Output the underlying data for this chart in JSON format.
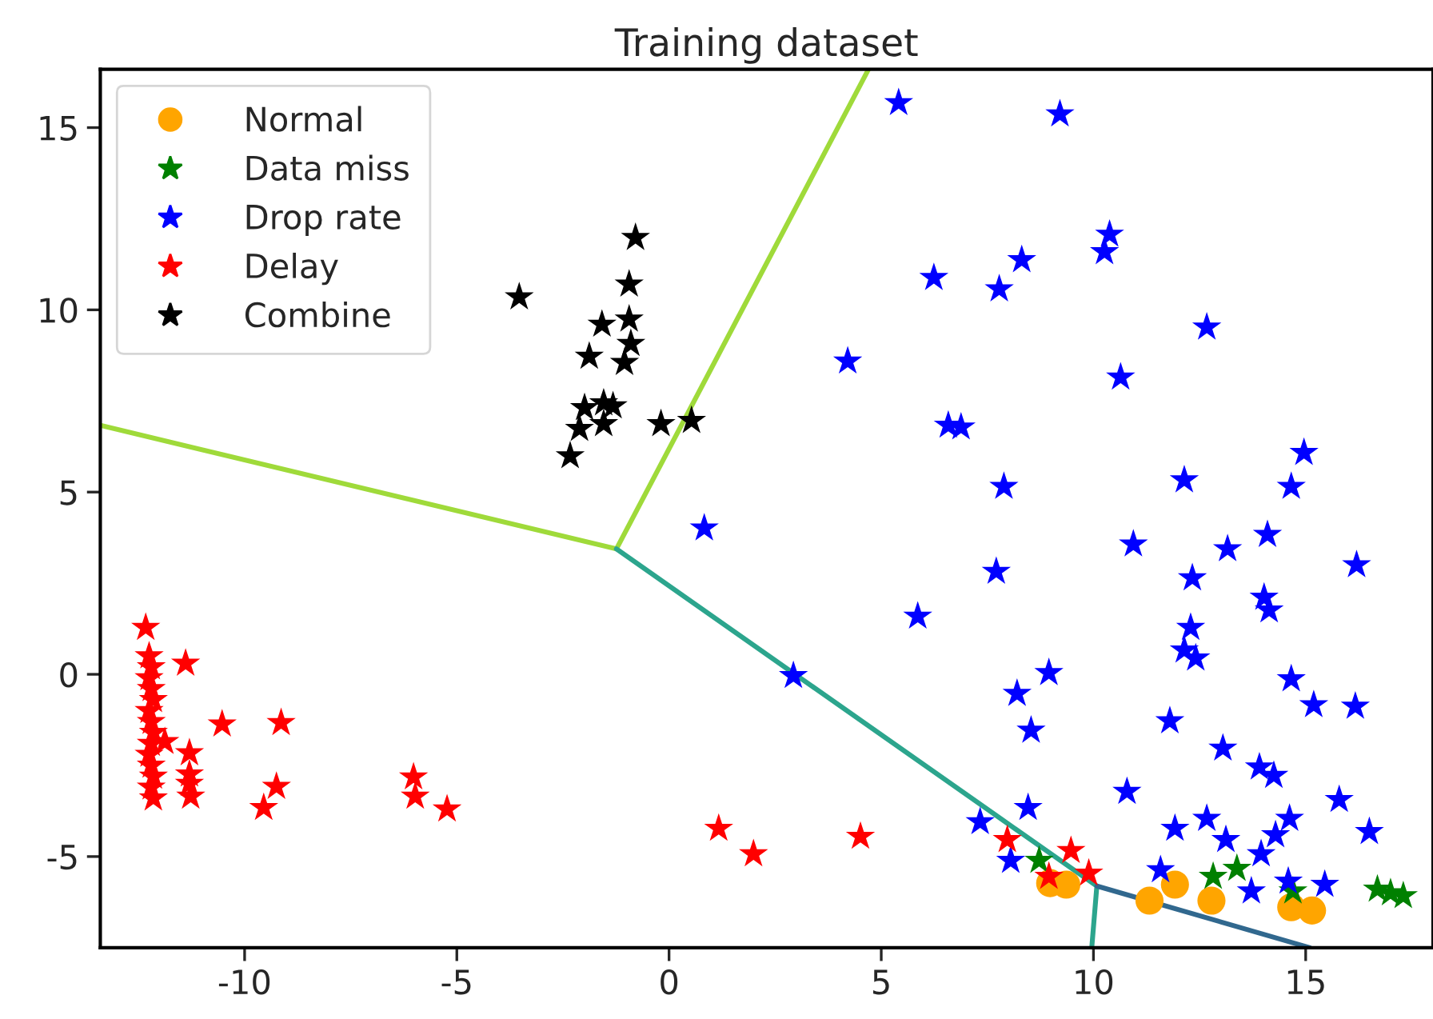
{
  "chart_data": {
    "type": "scatter",
    "title": "Training dataset",
    "xlim": [
      -13.4,
      18
    ],
    "ylim": [
      -7.5,
      16.6
    ],
    "xticks": [
      -10,
      -5,
      0,
      5,
      10,
      15
    ],
    "yticks": [
      -5,
      0,
      5,
      10,
      15
    ],
    "grid": false,
    "legend": "top left",
    "series": [
      {
        "type": "line",
        "color": "#9fda3a",
        "marker": "none",
        "x": [
          -13.4,
          -1.24,
          4.7
        ],
        "values": [
          6.83,
          3.44,
          16.6
        ]
      },
      {
        "type": "line",
        "color": "#2ca58d",
        "marker": "none",
        "x": [
          -1.24,
          10.08,
          9.96
        ],
        "values": [
          3.44,
          -5.81,
          -7.5
        ]
      },
      {
        "type": "line",
        "color": "#31688e",
        "marker": "none",
        "x": [
          10.08,
          15.1
        ],
        "values": [
          -5.81,
          -7.5
        ]
      },
      {
        "name": "Normal",
        "color": "#ffa500",
        "marker": "circle",
        "x": [
          8.98,
          9.36,
          11.32,
          11.92,
          12.78,
          14.66,
          15.15
        ],
        "values": [
          -5.73,
          -5.77,
          -6.21,
          -5.77,
          -6.21,
          -6.39,
          -6.48
        ]
      },
      {
        "name": "Data miss",
        "color": "#008000",
        "marker": "star",
        "x": [
          8.72,
          12.82,
          13.38,
          14.7,
          16.69,
          17.0,
          17.3
        ],
        "values": [
          -5.11,
          -5.55,
          -5.33,
          -5.95,
          -5.9,
          -6.0,
          -6.08
        ]
      },
      {
        "name": "Drop rate",
        "color": "#0000ff",
        "marker": "star",
        "x": [
          5.41,
          9.21,
          10.38,
          10.26,
          8.31,
          6.24,
          7.78,
          12.67,
          4.21,
          10.64,
          6.58,
          6.88,
          14.96,
          0.83,
          7.89,
          12.14,
          14.66,
          10.94,
          13.16,
          14.1,
          16.2,
          7.71,
          12.33,
          5.86,
          14.02,
          14.14,
          12.29,
          12.14,
          12.41,
          2.93,
          8.95,
          8.2,
          14.66,
          15.19,
          16.17,
          8.53,
          11.8,
          13.05,
          13.91,
          14.25,
          10.79,
          15.79,
          8.46,
          12.67,
          14.62,
          11.92,
          13.12,
          14.29,
          16.5,
          7.33,
          13.95,
          8.05,
          11.58,
          14.59,
          13.72,
          15.45
        ],
        "values": [
          15.68,
          15.37,
          12.07,
          11.59,
          11.37,
          10.88,
          10.57,
          9.52,
          8.59,
          8.15,
          6.83,
          6.78,
          6.08,
          4.01,
          5.15,
          5.33,
          5.15,
          3.57,
          3.44,
          3.83,
          3.0,
          2.82,
          2.64,
          1.59,
          2.11,
          1.76,
          1.28,
          0.66,
          0.44,
          -0.04,
          0.04,
          -0.53,
          -0.13,
          -0.84,
          -0.88,
          -1.54,
          -1.28,
          -2.03,
          -2.55,
          -2.78,
          -3.22,
          -3.44,
          -3.66,
          -3.96,
          -3.96,
          -4.23,
          -4.54,
          -4.41,
          -4.32,
          -4.05,
          -4.93,
          -5.11,
          -5.37,
          -5.68,
          -5.95,
          -5.77
        ]
      },
      {
        "name": "Delay",
        "color": "#ff0000",
        "marker": "star",
        "x": [
          -12.33,
          -12.25,
          -12.2,
          -12.25,
          -12.2,
          -12.15,
          -12.25,
          -12.2,
          -12.15,
          -12.2,
          -12.25,
          -12.2,
          -12.15,
          -12.2,
          -12.15,
          -11.88,
          -11.39,
          -11.3,
          -11.3,
          -11.27,
          -11.3,
          -10.53,
          -9.14,
          -9.25,
          -9.55,
          -6.02,
          -5.98,
          -5.23,
          1.17,
          1.99,
          4.51,
          7.97,
          9.47,
          8.95,
          9.89
        ],
        "values": [
          1.28,
          0.5,
          0.2,
          -0.1,
          -0.4,
          -0.7,
          -1.0,
          -1.3,
          -1.6,
          -1.9,
          -2.2,
          -2.5,
          -2.8,
          -3.1,
          -3.4,
          -1.85,
          0.3,
          -2.16,
          -2.74,
          -3.35,
          -3.0,
          -1.37,
          -1.33,
          -3.08,
          -3.66,
          -2.82,
          -3.35,
          -3.7,
          -4.23,
          -4.93,
          -4.45,
          -4.54,
          -4.84,
          -5.55,
          -5.46
        ]
      },
      {
        "name": "Combine",
        "color": "#000000",
        "marker": "star",
        "x": [
          -0.79,
          -3.53,
          -0.94,
          -1.58,
          -0.94,
          -0.9,
          -1.05,
          -1.88,
          -1.99,
          -1.54,
          -1.32,
          -2.11,
          -1.54,
          -2.33,
          -0.19,
          0.53
        ],
        "values": [
          11.98,
          10.35,
          10.7,
          9.6,
          9.74,
          9.07,
          8.55,
          8.72,
          7.31,
          7.44,
          7.36,
          6.74,
          6.87,
          5.99,
          6.87,
          6.96
        ]
      }
    ]
  }
}
